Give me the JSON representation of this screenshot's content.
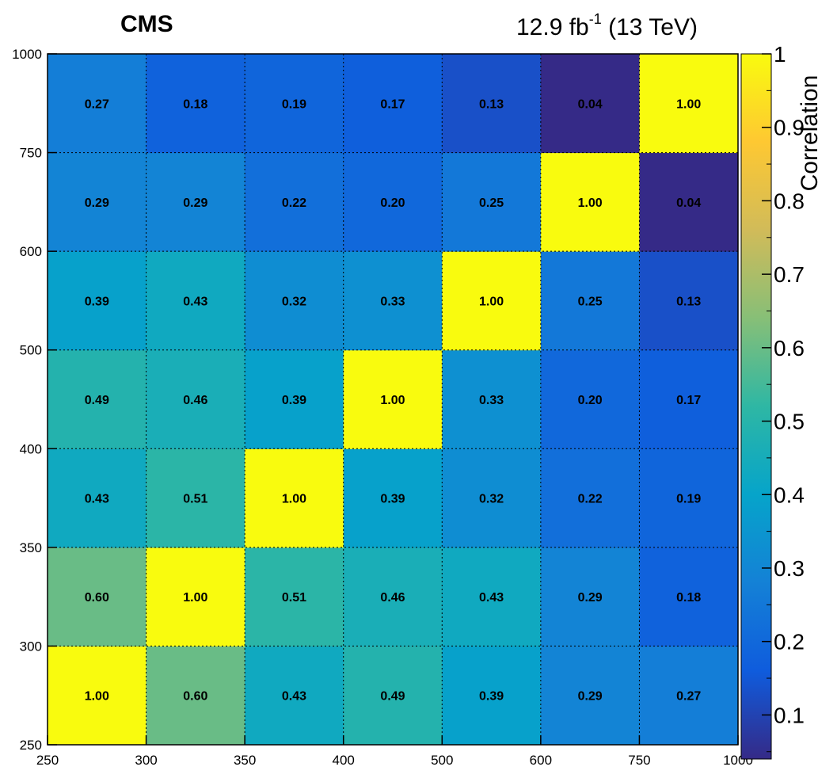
{
  "header": {
    "experiment": "CMS",
    "luminosity": "12.9 fb",
    "luminosity_exp": "-1",
    "energy": "(13 TeV)"
  },
  "chart_data": {
    "type": "heatmap",
    "title": "",
    "xlabel": "",
    "ylabel": "",
    "zlabel": "Correlation",
    "bin_edges": [
      "250",
      "300",
      "350",
      "400",
      "500",
      "600",
      "750",
      "1000"
    ],
    "y_bin_edges": [
      "250",
      "300",
      "350",
      "400",
      "500",
      "600",
      "750",
      "1000"
    ],
    "colorbar_ticks": [
      "0.1",
      "0.2",
      "0.3",
      "0.4",
      "0.5",
      "0.6",
      "0.7",
      "0.8",
      "0.9",
      "1"
    ],
    "zlim": [
      0.04,
      1.0
    ],
    "grid": true,
    "colormap": "parula",
    "values": [
      [
        1.0,
        0.6,
        0.43,
        0.49,
        0.39,
        0.29,
        0.27
      ],
      [
        0.6,
        1.0,
        0.51,
        0.46,
        0.43,
        0.29,
        0.18
      ],
      [
        0.43,
        0.51,
        1.0,
        0.39,
        0.32,
        0.22,
        0.19
      ],
      [
        0.49,
        0.46,
        0.39,
        1.0,
        0.33,
        0.2,
        0.17
      ],
      [
        0.39,
        0.43,
        0.32,
        0.33,
        1.0,
        0.25,
        0.13
      ],
      [
        0.29,
        0.29,
        0.22,
        0.2,
        0.25,
        1.0,
        0.04
      ],
      [
        0.27,
        0.18,
        0.19,
        0.17,
        0.13,
        0.04,
        1.0
      ]
    ]
  },
  "colors": {
    "palette": [
      "#352a87",
      "#0f5cdd",
      "#1481d6",
      "#06a4ca",
      "#2eb7a4",
      "#87bf77",
      "#d1bb59",
      "#fec832",
      "#f9fb0e"
    ]
  }
}
